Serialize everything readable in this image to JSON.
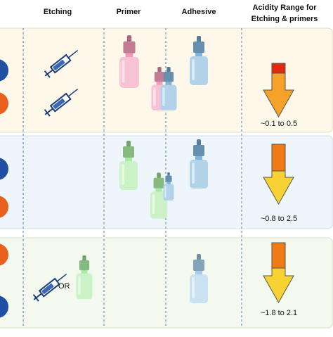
{
  "header": {
    "etching": "Etching",
    "primer": "Primer",
    "adhesive": "Adhesive",
    "acidity_line1": "Acidity Range for",
    "acidity_line2": "Etching  &  primers"
  },
  "rows": [
    {
      "range": "~0.1 to 0.5"
    },
    {
      "range": "~0.8 to 2.5"
    },
    {
      "range": "~1.8 to 2.1",
      "or": "OR"
    }
  ]
}
